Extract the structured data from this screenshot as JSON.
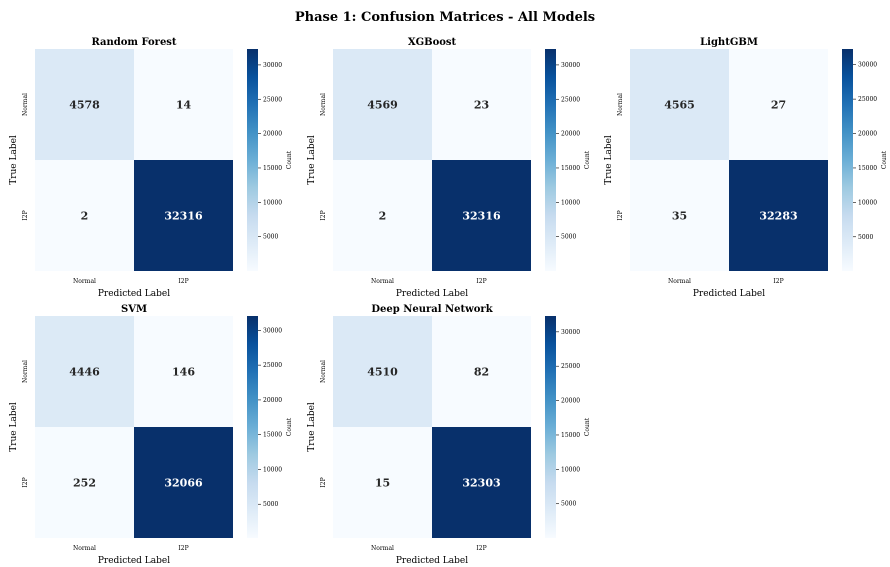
{
  "figure": {
    "title": "Phase 1: Confusion Matrices - All Models"
  },
  "chart_data": [
    {
      "type": "heatmap",
      "title": "Random Forest",
      "xlabel": "Predicted Label",
      "ylabel": "True Label",
      "x_categories": [
        "Normal",
        "I2P"
      ],
      "y_categories": [
        "Normal",
        "I2P"
      ],
      "values": [
        [
          4578,
          14
        ],
        [
          2,
          32316
        ]
      ],
      "colorbar": {
        "label": "Count",
        "ticks": [
          5000,
          10000,
          15000,
          20000,
          25000,
          30000
        ],
        "range": [
          2,
          32316
        ]
      }
    },
    {
      "type": "heatmap",
      "title": "XGBoost",
      "xlabel": "Predicted Label",
      "ylabel": "True Label",
      "x_categories": [
        "Normal",
        "I2P"
      ],
      "y_categories": [
        "Normal",
        "I2P"
      ],
      "values": [
        [
          4569,
          23
        ],
        [
          2,
          32316
        ]
      ],
      "colorbar": {
        "label": "Count",
        "ticks": [
          5000,
          10000,
          15000,
          20000,
          25000,
          30000
        ],
        "range": [
          2,
          32316
        ]
      }
    },
    {
      "type": "heatmap",
      "title": "LightGBM",
      "xlabel": "Predicted Label",
      "ylabel": "True Label",
      "x_categories": [
        "Normal",
        "I2P"
      ],
      "y_categories": [
        "Normal",
        "I2P"
      ],
      "values": [
        [
          4565,
          27
        ],
        [
          35,
          32283
        ]
      ],
      "colorbar": {
        "label": "Count",
        "ticks": [
          5000,
          10000,
          15000,
          20000,
          25000,
          30000
        ],
        "range": [
          27,
          32283
        ]
      }
    },
    {
      "type": "heatmap",
      "title": "SVM",
      "xlabel": "Predicted Label",
      "ylabel": "True Label",
      "x_categories": [
        "Normal",
        "I2P"
      ],
      "y_categories": [
        "Normal",
        "I2P"
      ],
      "values": [
        [
          4446,
          146
        ],
        [
          252,
          32066
        ]
      ],
      "colorbar": {
        "label": "Count",
        "ticks": [
          5000,
          10000,
          15000,
          20000,
          25000,
          30000
        ],
        "range": [
          146,
          32066
        ]
      }
    },
    {
      "type": "heatmap",
      "title": "Deep Neural Network",
      "xlabel": "Predicted Label",
      "ylabel": "True Label",
      "x_categories": [
        "Normal",
        "I2P"
      ],
      "y_categories": [
        "Normal",
        "I2P"
      ],
      "values": [
        [
          4510,
          82
        ],
        [
          15,
          32303
        ]
      ],
      "colorbar": {
        "label": "Count",
        "ticks": [
          5000,
          10000,
          15000,
          20000,
          25000,
          30000
        ],
        "range": [
          15,
          32303
        ]
      }
    }
  ]
}
